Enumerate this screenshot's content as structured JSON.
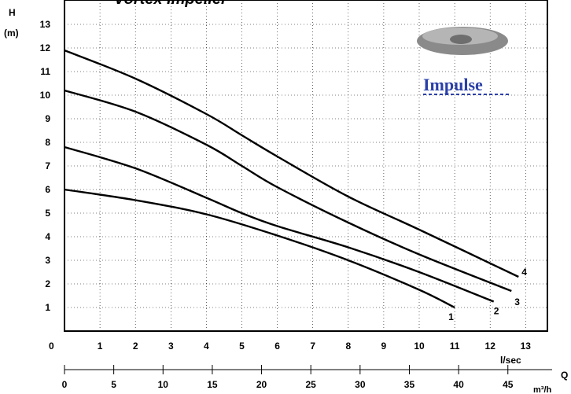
{
  "chart_data": {
    "type": "line",
    "title": "Vortex Impeller",
    "ylabel": "H",
    "yunit": "(m)",
    "xlabel": "Q",
    "x_unit_primary": "l/sec",
    "x_unit_secondary": "m³/h",
    "xlim": [
      0,
      13
    ],
    "ylim": [
      0,
      13
    ],
    "y_ticks": [
      1,
      2,
      3,
      4,
      5,
      6,
      7,
      8,
      9,
      10,
      11,
      12,
      13
    ],
    "x_ticks": [
      1,
      2,
      3,
      4,
      5,
      6,
      7,
      8,
      9,
      10,
      11,
      12,
      13
    ],
    "x_secondary_ticks": [
      0,
      5,
      10,
      15,
      20,
      25,
      30,
      35,
      40,
      45
    ],
    "origin_label": "0",
    "grid": true,
    "series": [
      {
        "name": "1",
        "x": [
          0,
          2,
          4,
          6,
          8,
          10,
          11
        ],
        "y": [
          6.0,
          5.55,
          4.95,
          4.05,
          3.0,
          1.75,
          1.0
        ]
      },
      {
        "name": "2",
        "x": [
          0,
          2,
          4,
          5,
          6,
          8,
          10,
          12.1
        ],
        "y": [
          7.8,
          6.9,
          5.65,
          5.0,
          4.45,
          3.55,
          2.5,
          1.25
        ]
      },
      {
        "name": "3",
        "x": [
          0,
          2,
          4,
          5,
          6,
          8,
          10,
          12.6
        ],
        "y": [
          10.2,
          9.3,
          7.9,
          7.0,
          6.1,
          4.6,
          3.25,
          1.7
        ]
      },
      {
        "name": "4",
        "x": [
          0,
          2,
          4,
          5,
          6,
          8,
          10,
          12.8
        ],
        "y": [
          11.9,
          10.7,
          9.2,
          8.3,
          7.4,
          5.7,
          4.3,
          2.3
        ]
      }
    ]
  },
  "logo": {
    "brand": "Impulse"
  },
  "colors": {
    "line": "#000000",
    "grid": "#000000",
    "brand": "#2a3fa8"
  }
}
